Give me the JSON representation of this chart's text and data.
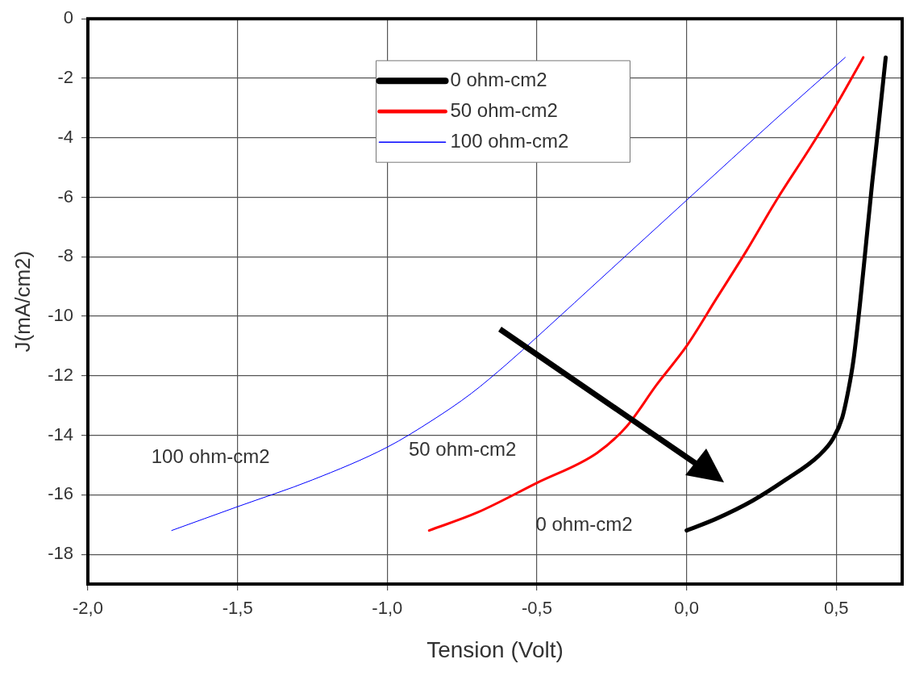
{
  "chart_data": {
    "type": "line",
    "xlabel": "Tension (Volt)",
    "ylabel": "J(mA/cm2)",
    "xlim": [
      -2,
      0.72
    ],
    "ylim": [
      -19,
      0
    ],
    "xticks": [
      {
        "value": -2,
        "label": "-2,0"
      },
      {
        "value": -1.5,
        "label": "-1,5"
      },
      {
        "value": -1,
        "label": "-1,0"
      },
      {
        "value": -0.5,
        "label": "-0,5"
      },
      {
        "value": 0,
        "label": "0,0"
      },
      {
        "value": 0.5,
        "label": "0,5"
      }
    ],
    "yticks": [
      0,
      -2,
      -4,
      -6,
      -8,
      -10,
      -12,
      -14,
      -16,
      -18
    ],
    "grid": true,
    "legend": "top",
    "marker": "none",
    "line_style": "solid",
    "series": [
      {
        "name": "0 ohm-cm2",
        "color": "#000000",
        "x": [
          0,
          0.1,
          0.22,
          0.33,
          0.44,
          0.49,
          0.52,
          0.54,
          0.557,
          0.58,
          0.6,
          0.62,
          0.642,
          0.665
        ],
        "values": [
          -17.2,
          -16.8,
          -16.2,
          -15.5,
          -14.7,
          -14.1,
          -13.4,
          -12.5,
          -11.5,
          -9.5,
          -7.5,
          -5.5,
          -3.5,
          -1.3
        ]
      },
      {
        "name": "50 ohm-cm2",
        "color": "#ff0000",
        "x": [
          -0.86,
          -0.7,
          -0.5,
          -0.3,
          -0.2,
          -0.1,
          0,
          0.1,
          0.2,
          0.3,
          0.415,
          0.5,
          0.59
        ],
        "values": [
          -17.2,
          -16.6,
          -15.6,
          -14.6,
          -13.7,
          -12.3,
          -11,
          -9.4,
          -7.8,
          -6.1,
          -4.3,
          -2.9,
          -1.3
        ]
      },
      {
        "name": "100 ohm-cm2",
        "color": "#0000ff",
        "x": [
          -1.72,
          -1.5,
          -1.25,
          -1,
          -0.85,
          -0.72,
          -0.6,
          -0.5,
          -0.25,
          0,
          0.3,
          0.53
        ],
        "values": [
          -17.2,
          -16.4,
          -15.5,
          -14.4,
          -13.5,
          -12.6,
          -11.6,
          -10.7,
          -8.4,
          -6.1,
          -3.35,
          -1.3
        ]
      }
    ],
    "annotations": [
      "100 ohm-cm2",
      "50 ohm-cm2",
      "0 ohm-cm2"
    ]
  }
}
